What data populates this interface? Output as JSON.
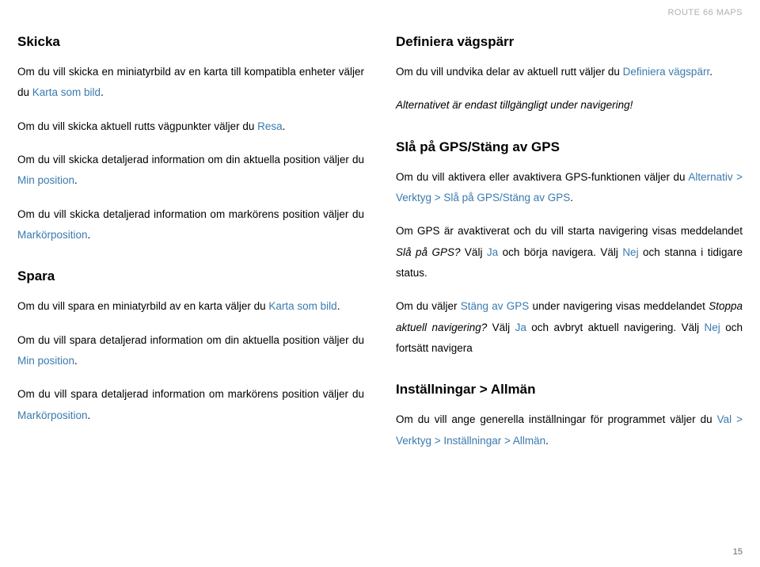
{
  "header": "ROUTE 66 MAPS",
  "pagenum": "15",
  "left": {
    "h1": "Skicka",
    "p1a": "Om du vill skicka en miniatyrbild av en karta till kompatibla enheter väljer du ",
    "p1b": "Karta som bild",
    "p1c": ".",
    "p2a": "Om du vill skicka aktuell rutts vägpunkter väljer du ",
    "p2b": "Resa",
    "p2c": ".",
    "p3a": "Om du vill skicka detaljerad information om din aktuella position väljer du ",
    "p3b": "Min position",
    "p3c": ".",
    "p4a": "Om du vill skicka detaljerad information om markörens position väljer du ",
    "p4b": "Markörposition",
    "p4c": ".",
    "h2": "Spara",
    "p5a": "Om du vill spara en miniatyrbild av en karta väljer du ",
    "p5b": "Karta som bild",
    "p5c": ".",
    "p6a": "Om du vill spara detaljerad information om din aktuella position väljer du ",
    "p6b": "Min position",
    "p6c": ".",
    "p7a": "Om du vill spara detaljerad information om markörens position väljer du ",
    "p7b": "Markörposition",
    "p7c": "."
  },
  "right": {
    "h1": "Definiera vägspärr",
    "p1a": "Om du vill undvika delar av aktuell rutt väljer du ",
    "p1b": "Definiera vägspärr",
    "p1c": ".",
    "p2": "Alternativet är endast tillgängligt under navigering!",
    "h2": "Slå på GPS/Stäng av GPS",
    "p3a": "Om du vill aktivera eller avaktivera GPS-funktionen väljer du ",
    "p3b": "Alternativ > Verktyg > Slå på GPS/Stäng av GPS",
    "p3c": ".",
    "p4a": "Om GPS är avaktiverat och du vill starta navigering visas meddelandet ",
    "p4b": "Slå på GPS?",
    "p4c": " Välj ",
    "p4d": "Ja",
    "p4e": " och börja navigera. Välj ",
    "p4f": "Nej",
    "p4g": " och stanna i tidigare status.",
    "p5a": "Om du väljer ",
    "p5b": "Stäng av GPS",
    "p5c": " under navigering visas meddelandet ",
    "p5d": "Stoppa aktuell navigering?",
    "p5e": " Välj ",
    "p5f": "Ja",
    "p5g": " och avbryt aktuell navigering. Välj ",
    "p5h": "Nej",
    "p5i": " och fortsätt navigera",
    "h3": "Inställningar > Allmän",
    "p6a": "Om du vill ange generella inställningar för programmet väljer du ",
    "p6b": "Val > Verktyg > Inställningar > Allmän",
    "p6c": "."
  }
}
